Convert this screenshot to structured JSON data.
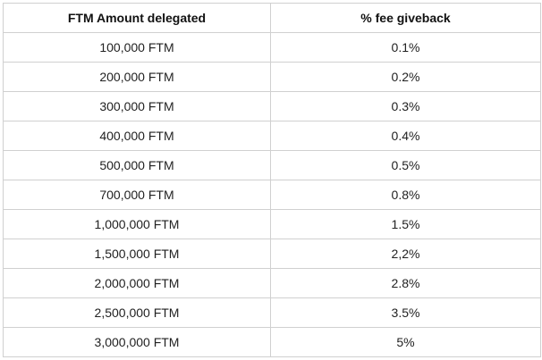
{
  "table": {
    "headers": [
      "FTM Amount delegated",
      "% fee giveback"
    ],
    "rows": [
      [
        "100,000 FTM",
        "0.1%"
      ],
      [
        "200,000 FTM",
        "0.2%"
      ],
      [
        "300,000 FTM",
        "0.3%"
      ],
      [
        "400,000 FTM",
        "0.4%"
      ],
      [
        "500,000 FTM",
        "0.5%"
      ],
      [
        "700,000 FTM",
        "0.8%"
      ],
      [
        "1,000,000 FTM",
        "1.5%"
      ],
      [
        "1,500,000 FTM",
        "2,2%"
      ],
      [
        "2,000,000 FTM",
        "2.8%"
      ],
      [
        "2,500,000 FTM",
        "3.5%"
      ],
      [
        "3,000,000 FTM",
        "5%"
      ]
    ]
  }
}
